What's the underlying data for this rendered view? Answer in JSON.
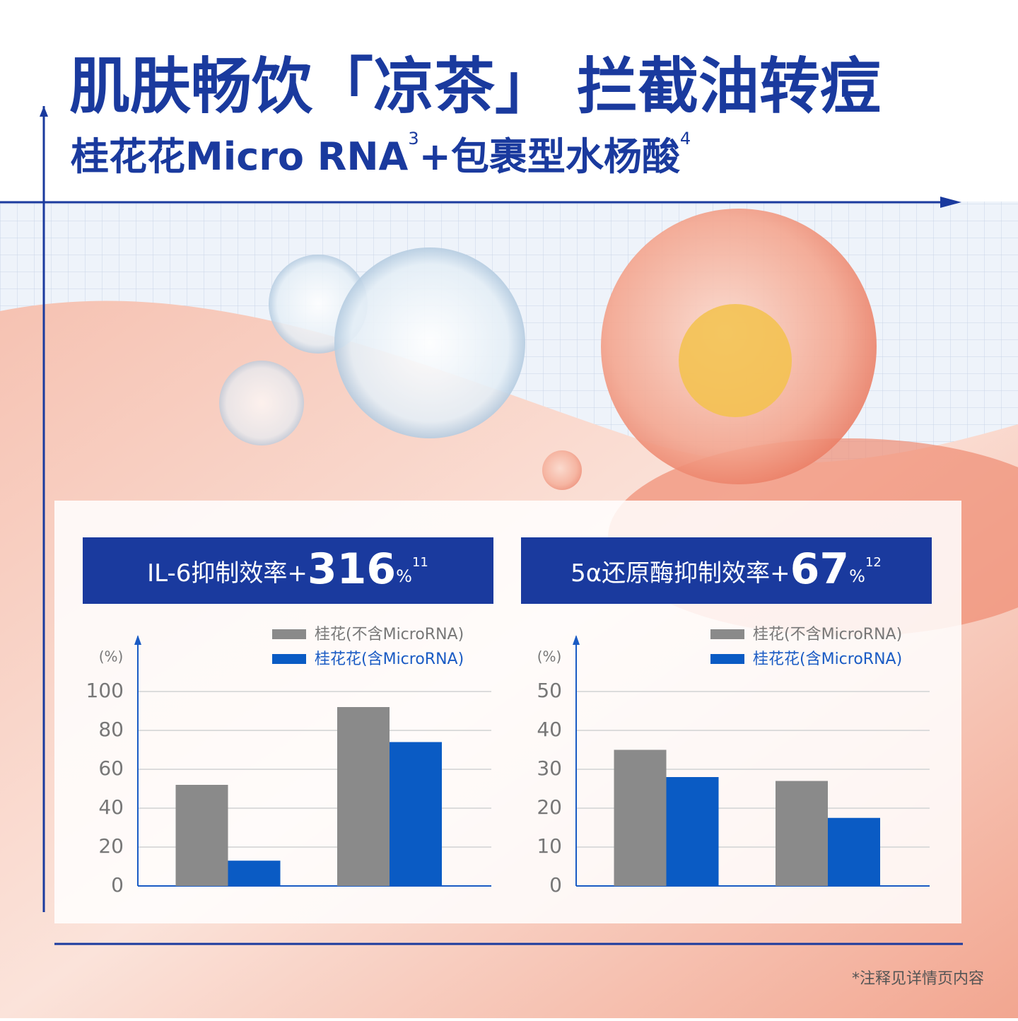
{
  "header": {
    "title": "肌肤畅饮「凉茶」 拦截油转痘",
    "subtitle": "桂花花Micro RNA",
    "subtitle_note": "3",
    "subtitle_2": "+包裹型水杨酸",
    "subtitle_2_note": "4"
  },
  "chart_data": [
    {
      "type": "bar",
      "title": "IL-6抑制效率+",
      "highlight": "316",
      "highlight_unit": "%",
      "note": "11",
      "y_label": "(%)",
      "categories": [
        null,
        null
      ],
      "series": [
        {
          "name": "桂花(不含MicroRNA)",
          "color": "#8a8a8a",
          "values": [
            52,
            92
          ]
        },
        {
          "name": "桂花花(含MicroRNA)",
          "color": "#0a5bc4",
          "values": [
            13,
            74
          ]
        }
      ],
      "ylim": [
        0,
        100
      ],
      "yticks": [
        0,
        20,
        40,
        60,
        80,
        100
      ],
      "grid": true
    },
    {
      "type": "bar",
      "title": "5α还原酶抑制效率+",
      "highlight": "67",
      "highlight_unit": "%",
      "note": "12",
      "y_label": "(%)",
      "categories": [
        null,
        null
      ],
      "series": [
        {
          "name": "桂花(不含MicroRNA)",
          "color": "#8a8a8a",
          "values": [
            35,
            27
          ]
        },
        {
          "name": "桂花花(含MicroRNA)",
          "color": "#0a5bc4",
          "values": [
            28,
            17.5
          ]
        }
      ],
      "ylim": [
        0,
        50
      ],
      "yticks": [
        0,
        10,
        20,
        30,
        40,
        50
      ],
      "grid": true
    }
  ],
  "footnote": "*注释见详情页内容"
}
